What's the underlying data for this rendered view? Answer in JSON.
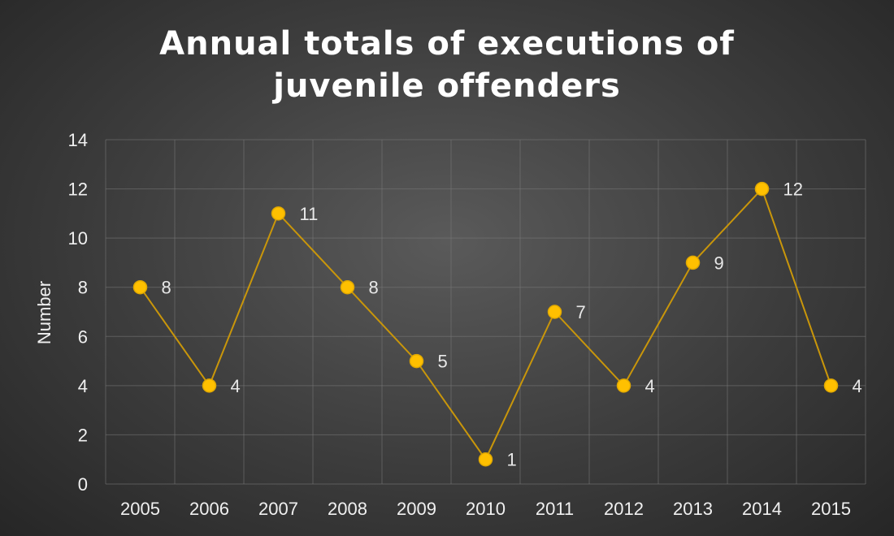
{
  "chart_data": {
    "type": "line",
    "title_lines": [
      "Annual totals of executions of",
      "juvenile offenders"
    ],
    "xlabel": "",
    "ylabel": "Number",
    "x": [
      "2005",
      "2006",
      "2007",
      "2008",
      "2009",
      "2010",
      "2011",
      "2012",
      "2013",
      "2014",
      "2015"
    ],
    "series": [
      {
        "values": [
          8,
          4,
          11,
          8,
          5,
          1,
          7,
          4,
          9,
          12,
          4
        ]
      }
    ],
    "data_labels": [
      "8",
      "4",
      "11",
      "8",
      "5",
      "1",
      "7",
      "4",
      "9",
      "12",
      "4"
    ],
    "ylim": [
      0,
      14
    ],
    "yticks": [
      0,
      2,
      4,
      6,
      8,
      10,
      12,
      14
    ],
    "grid": true,
    "colors": {
      "line": "#c9960a",
      "marker": "#ffc000",
      "marker_stroke": "#e0a800"
    }
  }
}
